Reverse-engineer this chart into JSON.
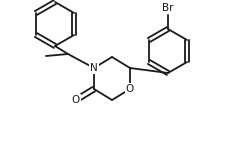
{
  "bg_color": "#ffffff",
  "line_color": "#1a1a1a",
  "line_width": 1.3,
  "font_size_atom": 7.5,
  "N_label": "N",
  "O_ring_label": "O",
  "O_carbonyl_label": "O",
  "Br_label": "Br"
}
